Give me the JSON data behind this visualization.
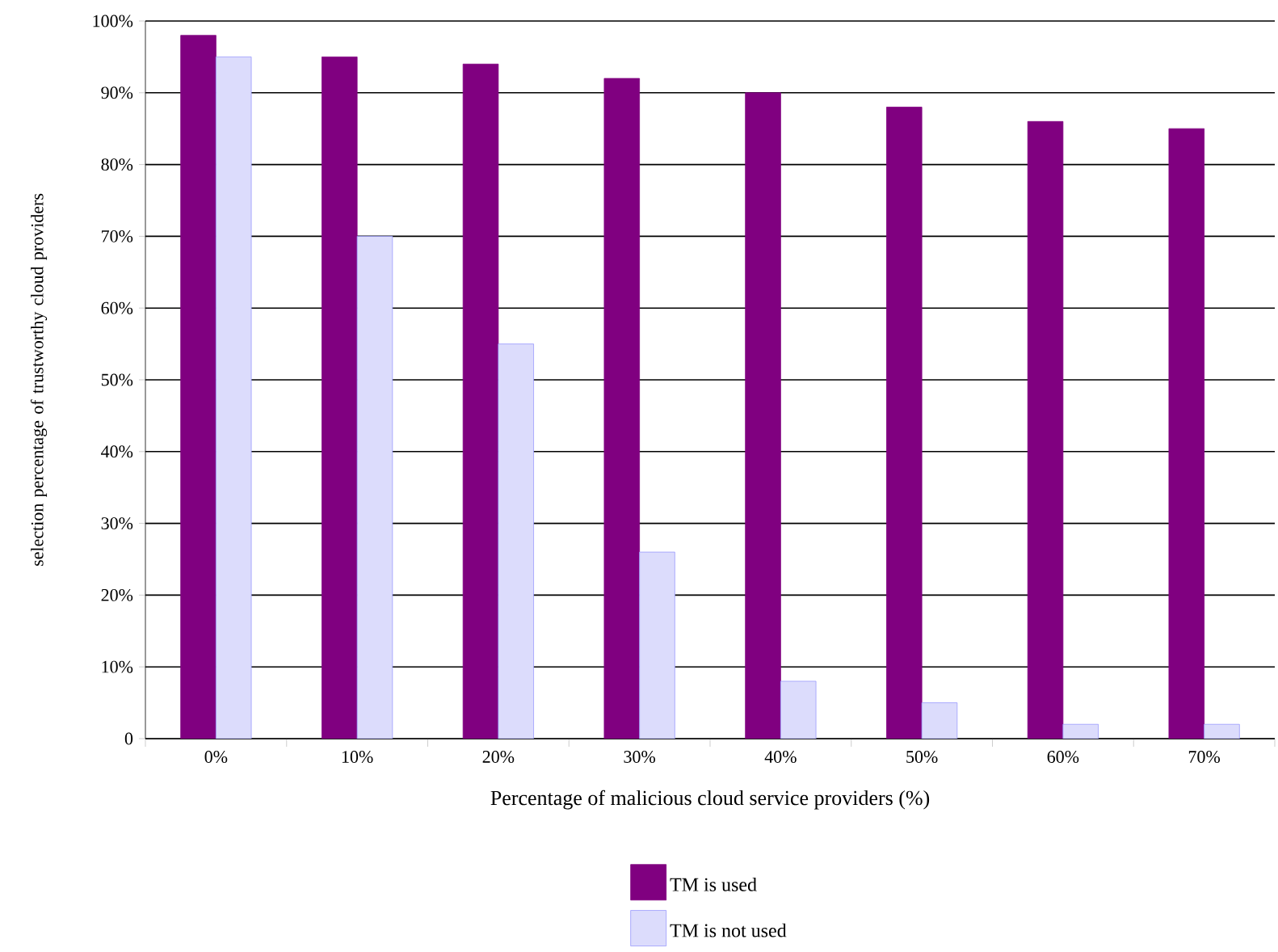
{
  "chart_data": {
    "type": "bar",
    "xlabel": "Percentage of malicious cloud service providers (%)",
    "ylabel": "selection percentage of trustworthy cloud providers",
    "categories": [
      "0%",
      "10%",
      "20%",
      "30%",
      "40%",
      "50%",
      "60%",
      "70%"
    ],
    "series": [
      {
        "name": "TM is used",
        "color": "#800080",
        "values": [
          98,
          95,
          94,
          92,
          90,
          88,
          86,
          85
        ]
      },
      {
        "name": "TM is not used",
        "color": "#dcdcfc",
        "values": [
          95,
          70,
          55,
          26,
          8,
          5,
          2,
          2
        ]
      }
    ],
    "ylim": [
      0,
      100
    ],
    "yticks": [
      0,
      {
        "value": 10,
        "label": "10%"
      },
      {
        "value": 20,
        "label": "20%"
      },
      {
        "value": 30,
        "label": "30%"
      },
      {
        "value": 40,
        "label": "40%"
      },
      {
        "value": 50,
        "label": "50%"
      },
      {
        "value": 60,
        "label": "60%"
      },
      {
        "value": 70,
        "label": "70%"
      },
      {
        "value": 80,
        "label": "80%"
      },
      {
        "value": 90,
        "label": "90%"
      },
      {
        "value": 100,
        "label": "100%"
      }
    ],
    "grid": "y",
    "legend": "bottom"
  }
}
